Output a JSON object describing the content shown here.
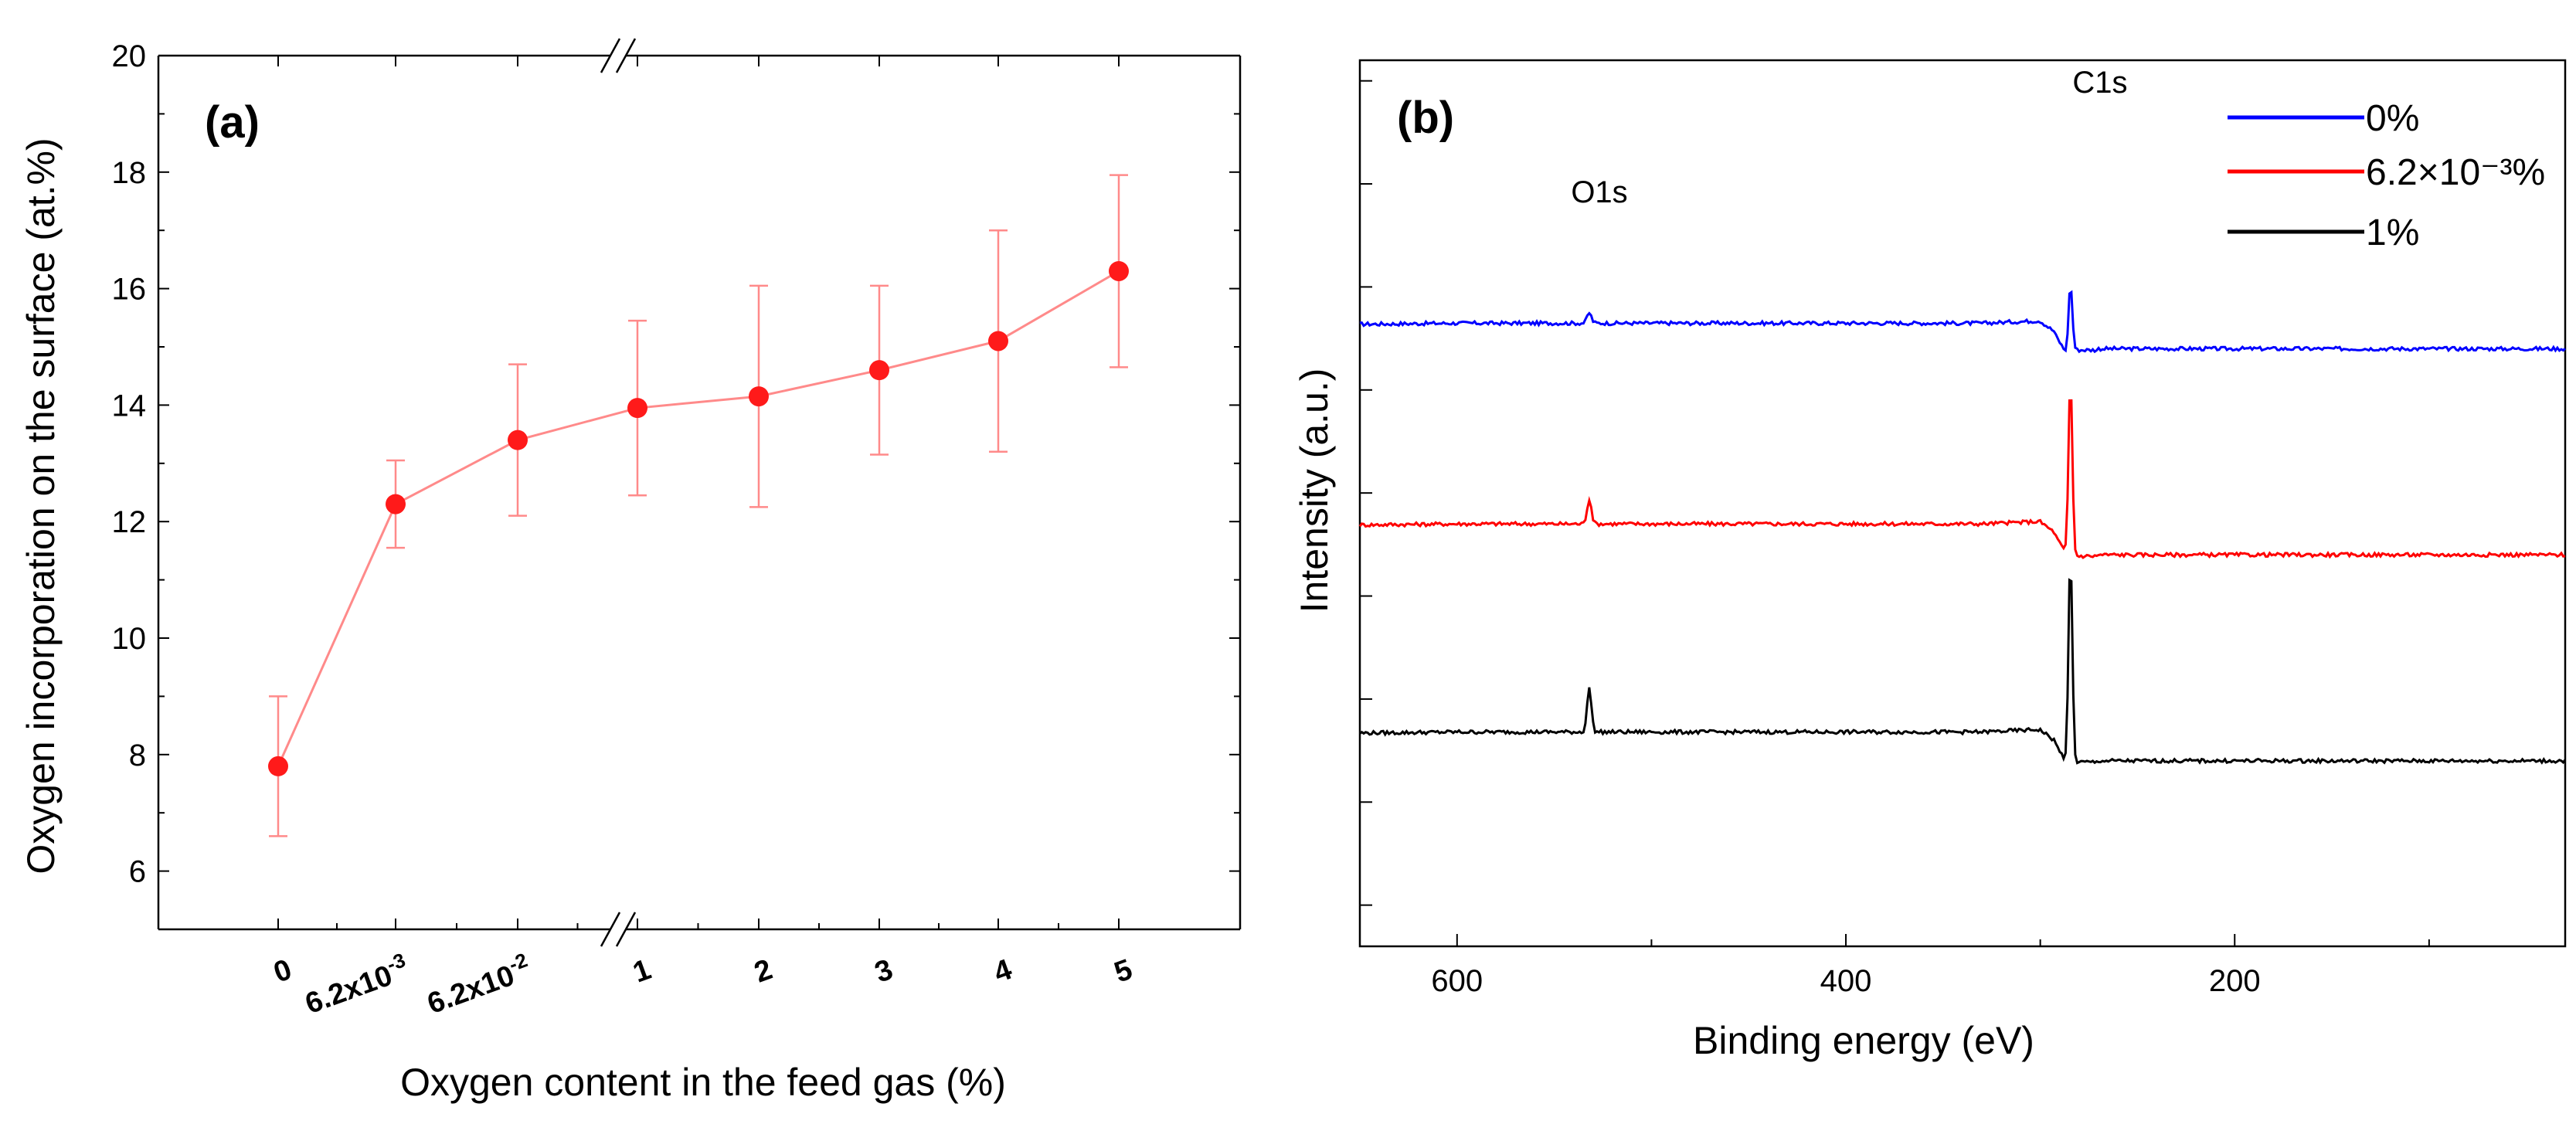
{
  "chart_data": [
    {
      "type": "line",
      "panel_label": "(a)",
      "xlabel": "Oxygen content in the feed gas (%)",
      "ylabel": "Oxygen incorporation on the surface (at.%)",
      "ylim": [
        5,
        20
      ],
      "yticks": [
        "6",
        "8",
        "10",
        "12",
        "14",
        "16",
        "18",
        "20"
      ],
      "axis_break": "between 6.2x10^-2 and 1",
      "grid": false,
      "color": "#ff1a1a",
      "categories": [
        {
          "base": "0",
          "exp": ""
        },
        {
          "base": "6.2x10",
          "exp": "-3"
        },
        {
          "base": "6.2x10",
          "exp": "-2"
        },
        {
          "base": "1",
          "exp": ""
        },
        {
          "base": "2",
          "exp": ""
        },
        {
          "base": "3",
          "exp": ""
        },
        {
          "base": "4",
          "exp": ""
        },
        {
          "base": "5",
          "exp": ""
        }
      ],
      "x": [
        0,
        0.0062,
        0.062,
        1,
        2,
        3,
        4,
        5
      ],
      "values": [
        7.8,
        12.3,
        13.4,
        13.95,
        14.15,
        14.6,
        15.1,
        16.3
      ],
      "error": [
        1.2,
        0.75,
        1.3,
        1.5,
        1.9,
        1.45,
        1.9,
        1.65
      ]
    },
    {
      "type": "line",
      "panel_label": "(b)",
      "xlabel": "Binding energy (eV)",
      "ylabel": "Intensity (a.u.)",
      "xlim": [
        650,
        30
      ],
      "xticks": [
        "600",
        "400",
        "200"
      ],
      "grid": false,
      "legend_position": "top-right",
      "annotations": [
        "O1s",
        "C1s"
      ],
      "series": [
        {
          "name": "0%",
          "color": "#0000ff",
          "offset": 16.0,
          "baseline_low_be": 16.0,
          "baseline_high_be": 16.62,
          "o1s_peak": 0.25,
          "c1s_peak": 1.55
        },
        {
          "name": "6.2×10⁻³%",
          "color": "#ff0000",
          "offset": 11.0,
          "baseline_low_be": 11.0,
          "baseline_high_be": 11.75,
          "o1s_peak": 0.6,
          "c1s_peak": 4.25
        },
        {
          "name": "1%",
          "color": "#000000",
          "offset": 6.0,
          "baseline_low_be": 6.0,
          "baseline_high_be": 6.7,
          "o1s_peak": 1.05,
          "c1s_peak": 4.95
        }
      ]
    }
  ]
}
